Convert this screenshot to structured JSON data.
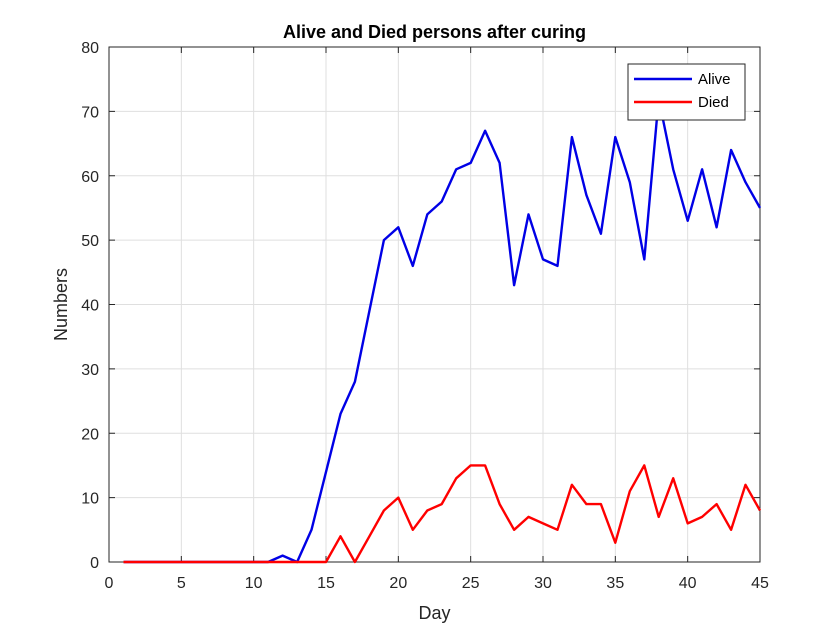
{
  "chart_data": {
    "type": "line",
    "title": "Alive and Died persons after curing",
    "xlabel": "Day",
    "ylabel": "Numbers",
    "xlim": [
      0,
      45
    ],
    "ylim": [
      0,
      80
    ],
    "xticks": [
      0,
      5,
      10,
      15,
      20,
      25,
      30,
      35,
      40,
      45
    ],
    "yticks": [
      0,
      10,
      20,
      30,
      40,
      50,
      60,
      70,
      80
    ],
    "grid": true,
    "legend_position": "top-right",
    "x": [
      1,
      2,
      3,
      4,
      5,
      6,
      7,
      8,
      9,
      10,
      11,
      12,
      13,
      14,
      15,
      16,
      17,
      18,
      19,
      20,
      21,
      22,
      23,
      24,
      25,
      26,
      27,
      28,
      29,
      30,
      31,
      32,
      33,
      34,
      35,
      36,
      37,
      38,
      39,
      40,
      41,
      42,
      43,
      44,
      45
    ],
    "series": [
      {
        "name": "Alive",
        "color": "#0000e6",
        "values": [
          0,
          0,
          0,
          0,
          0,
          0,
          0,
          0,
          0,
          0,
          0,
          1,
          0,
          5,
          14,
          23,
          28,
          39,
          50,
          52,
          46,
          54,
          56,
          61,
          62,
          67,
          62,
          43,
          54,
          47,
          46,
          66,
          57,
          51,
          66,
          59,
          47,
          72,
          61,
          53,
          61,
          52,
          64,
          59,
          55
        ]
      },
      {
        "name": "Died",
        "color": "#ff0000",
        "values": [
          0,
          0,
          0,
          0,
          0,
          0,
          0,
          0,
          0,
          0,
          0,
          0,
          0,
          0,
          0,
          4,
          0,
          4,
          8,
          10,
          5,
          8,
          9,
          13,
          15,
          15,
          9,
          5,
          7,
          6,
          5,
          12,
          9,
          9,
          3,
          11,
          15,
          7,
          13,
          6,
          7,
          9,
          5,
          12,
          8
        ]
      }
    ]
  }
}
